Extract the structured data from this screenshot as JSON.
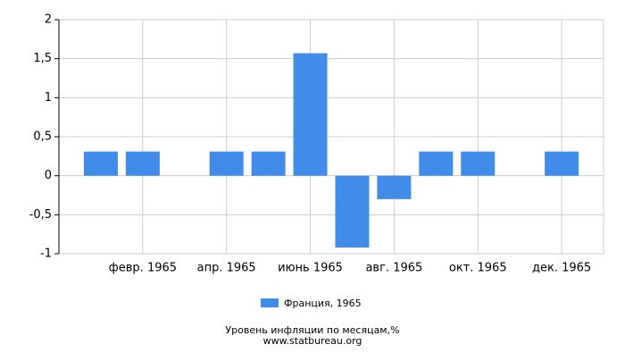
{
  "chart_data": {
    "type": "bar",
    "title": "Уровень инфляции по месяцам,%",
    "subtitle": "www.statbureau.org",
    "categories": [
      null,
      "февр. 1965",
      null,
      "апр. 1965",
      null,
      "июнь 1965",
      null,
      "авг. 1965",
      null,
      "окт. 1965",
      null,
      "дек. 1965"
    ],
    "series": [
      {
        "name": "Франция, 1965",
        "color": "#418be9",
        "values": [
          0.31,
          0.31,
          0,
          0.31,
          0.31,
          1.57,
          -0.92,
          -0.3,
          0.31,
          0.31,
          0,
          0.31
        ]
      }
    ],
    "ylim": [
      -1,
      2
    ],
    "yticks": [
      -1,
      {
        "value": -0.5,
        "label": "-0,5"
      },
      0,
      {
        "value": 0.5,
        "label": "0,5"
      },
      1,
      {
        "value": 1.5,
        "label": "1,5"
      },
      2
    ],
    "grid": true,
    "legend": "bottom"
  }
}
